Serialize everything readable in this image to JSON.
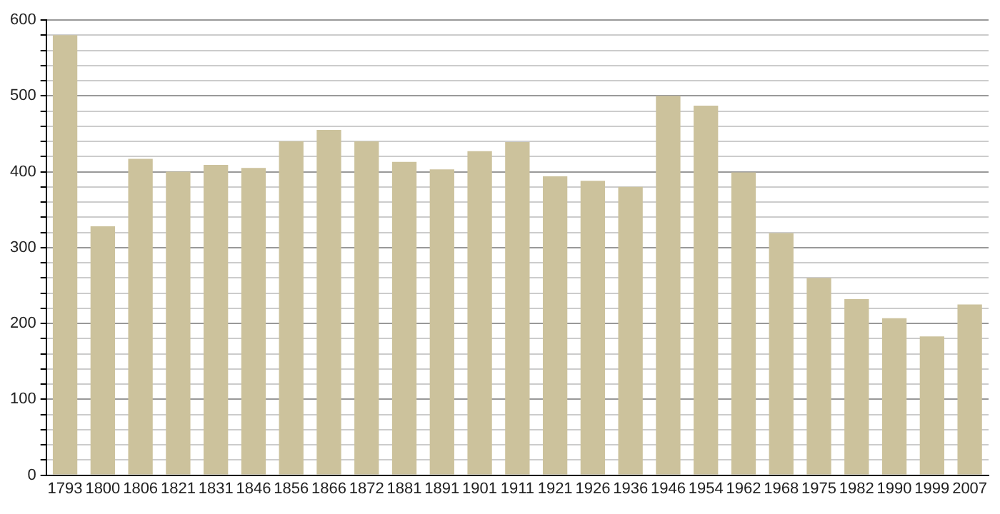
{
  "chart_data": {
    "type": "bar",
    "categories": [
      "1793",
      "1800",
      "1806",
      "1821",
      "1831",
      "1846",
      "1856",
      "1866",
      "1872",
      "1881",
      "1891",
      "1901",
      "1911",
      "1921",
      "1926",
      "1936",
      "1946",
      "1954",
      "1962",
      "1968",
      "1975",
      "1982",
      "1990",
      "1999",
      "2007"
    ],
    "values": [
      580,
      328,
      417,
      400,
      409,
      405,
      440,
      455,
      440,
      413,
      403,
      427,
      439,
      394,
      388,
      380,
      500,
      487,
      399,
      319,
      260,
      232,
      207,
      183,
      225
    ],
    "color": "#ccc29c",
    "ylim": [
      0,
      600
    ],
    "yticks": [
      0,
      {
        "value": 20,
        "label": null
      },
      {
        "value": 40,
        "label": null
      },
      {
        "value": 60,
        "label": null
      },
      {
        "value": 80,
        "label": null
      },
      100,
      {
        "value": 120,
        "label": null
      },
      {
        "value": 140,
        "label": null
      },
      {
        "value": 160,
        "label": null
      },
      {
        "value": 180,
        "label": null
      },
      200,
      {
        "value": 220,
        "label": null
      },
      {
        "value": 240,
        "label": null
      },
      {
        "value": 260,
        "label": null
      },
      {
        "value": 280,
        "label": null
      },
      300,
      {
        "value": 320,
        "label": null
      },
      {
        "value": 340,
        "label": null
      },
      {
        "value": 360,
        "label": null
      },
      {
        "value": 380,
        "label": null
      },
      400,
      {
        "value": 420,
        "label": null
      },
      {
        "value": 440,
        "label": null
      },
      {
        "value": 460,
        "label": null
      },
      {
        "value": 480,
        "label": null
      },
      500,
      {
        "value": 520,
        "label": null
      },
      {
        "value": 540,
        "label": null
      },
      {
        "value": 560,
        "label": null
      },
      {
        "value": 580,
        "label": null
      },
      600
    ],
    "grid": true
  }
}
